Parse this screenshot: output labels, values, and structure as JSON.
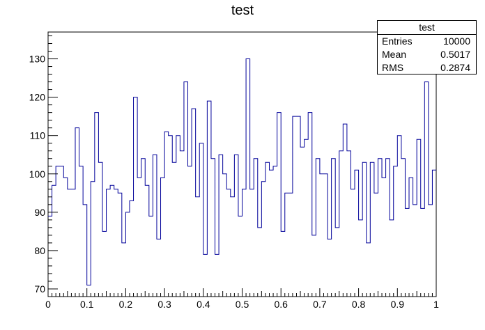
{
  "chart_data": {
    "type": "histogram",
    "title": "test",
    "xlabel": "",
    "ylabel": "",
    "xlim": [
      0,
      1
    ],
    "ylim": [
      68,
      137
    ],
    "bins": 100,
    "x_ticks": [
      "0",
      "0.1",
      "0.2",
      "0.3",
      "0.4",
      "0.5",
      "0.6",
      "0.7",
      "0.8",
      "0.9",
      "1"
    ],
    "y_ticks": [
      "70",
      "80",
      "90",
      "100",
      "110",
      "120",
      "130"
    ],
    "values": [
      89,
      97,
      102,
      102,
      99,
      96,
      96,
      112,
      102,
      92,
      71,
      98,
      116,
      103,
      85,
      96,
      97,
      96,
      95,
      82,
      90,
      93,
      120,
      99,
      104,
      97,
      89,
      105,
      83,
      99,
      111,
      110,
      103,
      110,
      106,
      124,
      102,
      117,
      94,
      108,
      79,
      119,
      104,
      79,
      105,
      100,
      96,
      94,
      105,
      89,
      96,
      130,
      96,
      104,
      86,
      98,
      103,
      101,
      102,
      116,
      85,
      95,
      95,
      115,
      115,
      107,
      109,
      116,
      84,
      104,
      100,
      100,
      83,
      104,
      86,
      106,
      113,
      106,
      96,
      101,
      88,
      103,
      82,
      103,
      95,
      104,
      99,
      104,
      88,
      102,
      110,
      104,
      91,
      99,
      92,
      109,
      91,
      124,
      92,
      101
    ],
    "line_color": "#000099",
    "stats_box": {
      "title": "test",
      "rows": [
        {
          "label": "Entries",
          "value": "10000"
        },
        {
          "label": "Mean",
          "value": "0.5017"
        },
        {
          "label": "RMS",
          "value": "0.2874"
        }
      ]
    }
  }
}
